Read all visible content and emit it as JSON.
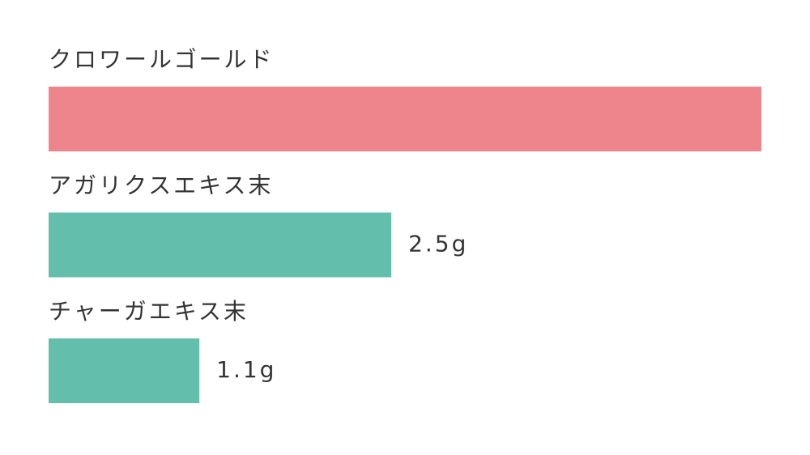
{
  "chart_data": {
    "type": "bar",
    "orientation": "horizontal",
    "categories": [
      "クロワールゴールド",
      "アガリクスエキス末",
      "チャーガエキス末"
    ],
    "values": [
      5.2,
      2.5,
      1.1
    ],
    "value_labels": [
      null,
      "2.5g",
      "1.1g"
    ],
    "colors": [
      "#ee858c",
      "#63bfab",
      "#63bfab"
    ]
  }
}
